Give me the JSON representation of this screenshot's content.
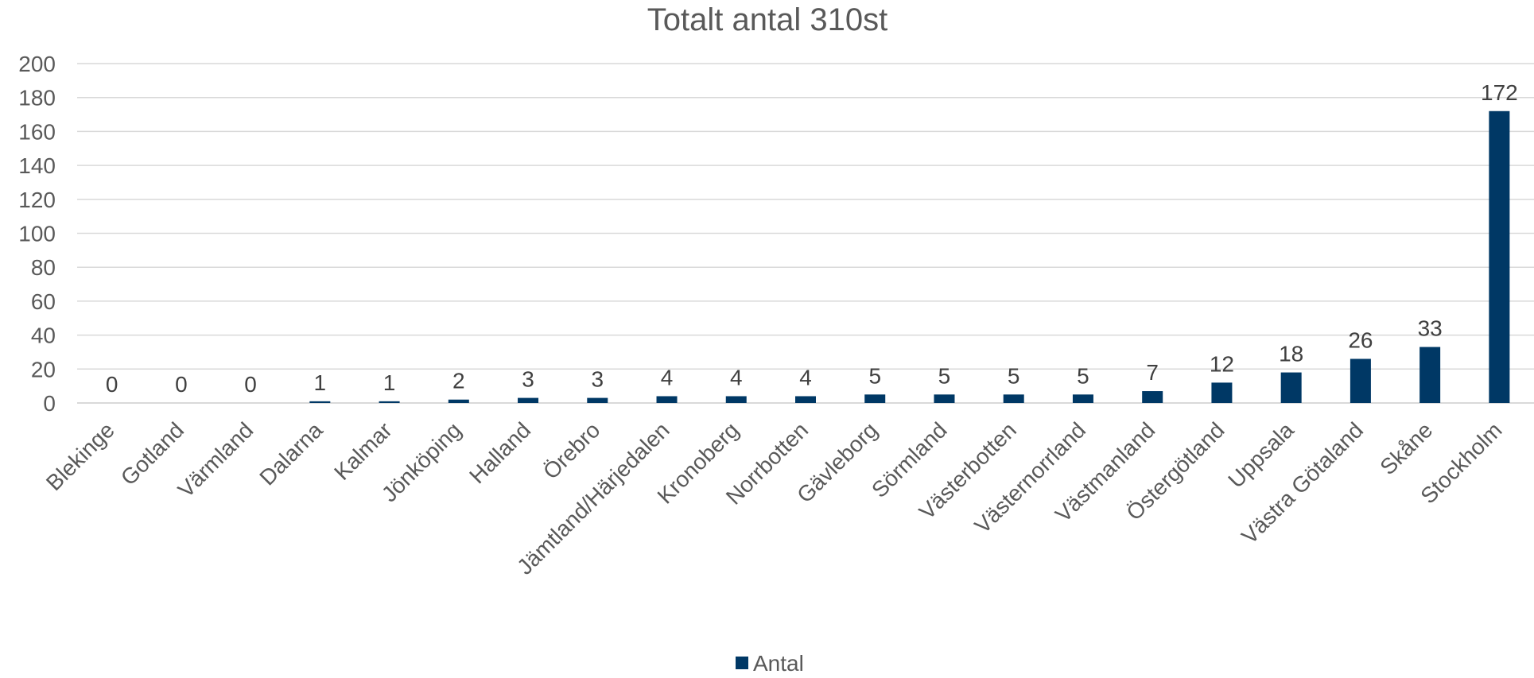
{
  "chart_data": {
    "type": "bar",
    "title": "Totalt antal 310st",
    "categories": [
      "Blekinge",
      "Gotland",
      "Värmland",
      "Dalarna",
      "Kalmar",
      "Jönköping",
      "Halland",
      "Örebro",
      "Jämtland/Härjedalen",
      "Kronoberg",
      "Norrbotten",
      "Gävleborg",
      "Sörmland",
      "Västerbotten",
      "Västernorrland",
      "Västmanland",
      "Östergötland",
      "Uppsala",
      "Västra Götaland",
      "Skåne",
      "Stockholm"
    ],
    "series": [
      {
        "name": "Antal",
        "values": [
          0,
          0,
          0,
          1,
          1,
          2,
          3,
          3,
          4,
          4,
          4,
          5,
          5,
          5,
          5,
          7,
          12,
          18,
          26,
          33,
          172
        ],
        "color": "#003865"
      }
    ],
    "yticks": [
      "0",
      "20",
      "40",
      "60",
      "80",
      "100",
      "120",
      "140",
      "160",
      "180",
      "200"
    ],
    "ylim": [
      0,
      200
    ],
    "grid": true,
    "data_labels": true,
    "legend_position": "bottom"
  }
}
